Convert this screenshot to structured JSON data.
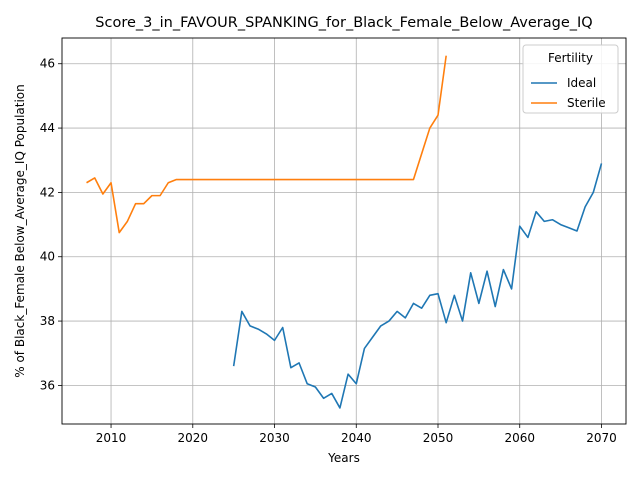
{
  "chart_data": {
    "type": "line",
    "title": "Score_3_in_FAVOUR_SPANKING_for_Black_Female_Below_Average_IQ",
    "xlabel": "Years",
    "ylabel": "% of Black_Female Below_Average_IQ Population",
    "xlim": [
      2004,
      2073
    ],
    "ylim": [
      34.8,
      46.8
    ],
    "xticks": [
      2010,
      2020,
      2030,
      2040,
      2050,
      2060,
      2070
    ],
    "yticks": [
      36,
      38,
      40,
      42,
      44,
      46
    ],
    "grid": true,
    "legend": {
      "title": "Fertility",
      "placement": "top-right"
    },
    "series": [
      {
        "name": "Ideal",
        "color": "#1f77b4",
        "x": [
          2025,
          2026,
          2027,
          2028,
          2029,
          2030,
          2031,
          2032,
          2033,
          2034,
          2035,
          2036,
          2037,
          2038,
          2039,
          2040,
          2041,
          2042,
          2043,
          2044,
          2045,
          2046,
          2047,
          2048,
          2049,
          2050,
          2051,
          2052,
          2053,
          2054,
          2055,
          2056,
          2057,
          2058,
          2059,
          2060,
          2061,
          2062,
          2063,
          2064,
          2065,
          2066,
          2067,
          2068,
          2069,
          2070
        ],
        "values": [
          36.6,
          38.3,
          37.85,
          37.75,
          37.6,
          37.4,
          37.8,
          36.55,
          36.7,
          36.05,
          35.95,
          35.6,
          35.75,
          35.3,
          36.35,
          36.05,
          37.15,
          37.5,
          37.85,
          38.0,
          38.3,
          38.1,
          38.55,
          38.4,
          38.8,
          38.85,
          37.95,
          38.8,
          38.0,
          39.5,
          38.55,
          39.55,
          38.45,
          39.6,
          39.0,
          40.95,
          40.6,
          41.4,
          41.1,
          41.15,
          41.0,
          40.9,
          40.8,
          41.55,
          42.0,
          42.9
        ]
      },
      {
        "name": "Sterile",
        "color": "#ff7f0e",
        "x": [
          2007,
          2008,
          2009,
          2010,
          2011,
          2012,
          2013,
          2014,
          2015,
          2016,
          2017,
          2018,
          2019,
          2020,
          2021,
          2022,
          2023,
          2024,
          2025,
          2026,
          2027,
          2028,
          2029,
          2030,
          2031,
          2032,
          2033,
          2034,
          2035,
          2036,
          2037,
          2038,
          2039,
          2040,
          2041,
          2042,
          2043,
          2044,
          2045,
          2046,
          2047,
          2048,
          2049,
          2050,
          2051
        ],
        "values": [
          42.3,
          42.45,
          41.95,
          42.3,
          40.75,
          41.1,
          41.65,
          41.65,
          41.9,
          41.9,
          42.3,
          42.4,
          42.4,
          42.4,
          42.4,
          42.4,
          42.4,
          42.4,
          42.4,
          42.4,
          42.4,
          42.4,
          42.4,
          42.4,
          42.4,
          42.4,
          42.4,
          42.4,
          42.4,
          42.4,
          42.4,
          42.4,
          42.4,
          42.4,
          42.4,
          42.4,
          42.4,
          42.4,
          42.4,
          42.4,
          42.4,
          43.2,
          44.0,
          44.4,
          46.25
        ]
      }
    ]
  }
}
